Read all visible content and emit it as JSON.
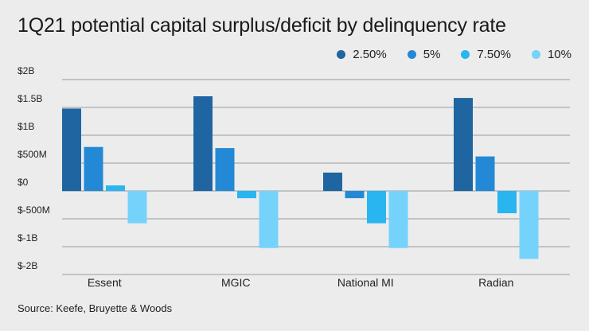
{
  "chart_data": {
    "type": "bar",
    "title": "1Q21 potential capital surplus/deficit by delinquency rate",
    "source": "Source: Keefe, Bruyette & Woods",
    "categories": [
      "Essent",
      "MGIC",
      "National MI",
      "Radian"
    ],
    "y_ticks": [
      {
        "label": "$2B",
        "value": 2000
      },
      {
        "label": "$1.5B",
        "value": 1500
      },
      {
        "label": "$1B",
        "value": 1000
      },
      {
        "label": "$500M",
        "value": 500
      },
      {
        "label": "$0",
        "value": 0
      },
      {
        "label": "$-500M",
        "value": -500
      },
      {
        "label": "$-1B",
        "value": -1000
      },
      {
        "label": "$-2B",
        "value": -2000
      }
    ],
    "unit": "millions USD",
    "grid": true,
    "legend_position": "top-right",
    "series": [
      {
        "name": "2.50%",
        "color": "#1f65a1",
        "values": [
          1480,
          1700,
          330,
          1670
        ]
      },
      {
        "name": "5%",
        "color": "#2389d6",
        "values": [
          790,
          770,
          -130,
          620
        ]
      },
      {
        "name": "7.50%",
        "color": "#29b5f0",
        "values": [
          100,
          -130,
          -580,
          -400
        ]
      },
      {
        "name": "10%",
        "color": "#75d3fb",
        "values": [
          -580,
          -1050,
          -1050,
          -1440
        ]
      }
    ]
  }
}
